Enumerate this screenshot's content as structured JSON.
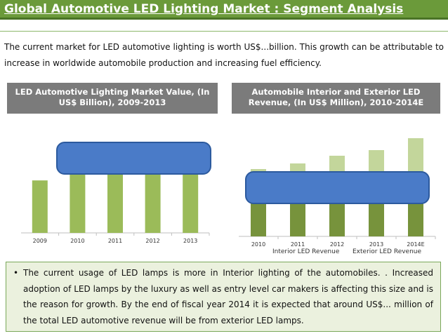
{
  "header": {
    "title": "Global Automotive LED Lighting Market : Segment Analysis"
  },
  "intro_text": "The current market for LED automotive lighting is worth US$...billion. This growth can be attributable to increase in worldwide automobile production and increasing fuel efficiency.",
  "left_panel": {
    "heading": "LED Automotive Lighting Market Value, (In US$ Billion), 2009-2013"
  },
  "right_panel": {
    "heading": "Automobile Interior and Exterior LED Revenue, (In US$ Million), 2010-2014E"
  },
  "bullet": {
    "marker": "•",
    "text": "The current usage of LED lamps is more in Interior lighting of the automobiles. . Increased adoption of LED lamps by the luxury as well as entry level car makers is affecting this size and is the reason for growth. By the end of fiscal year 2014 it is expected that around US$... million of the total LED automotive revenue will be from exterior LED lamps."
  },
  "colors": {
    "title_bar": "#6b9a3a",
    "bar_green": "#9bbb59",
    "interior_dark": "#77933c",
    "exterior_light": "#c3d69b",
    "overlay_blue": "#4a7bc8",
    "panel_gray": "#7b7b7b",
    "bullet_bg": "#ebf1de"
  },
  "chart_data": [
    {
      "type": "bar",
      "categories": [
        "2009",
        "2010",
        "2011",
        "2012",
        "2013"
      ],
      "values": [
        0.68,
        0.8,
        0.85,
        0.9,
        0.95
      ],
      "ylim": [
        0,
        1
      ],
      "grid": false,
      "obscured_by_overlay": true
    },
    {
      "type": "bar",
      "stacked": true,
      "categories": [
        "2010",
        "2011",
        "2012",
        "2013",
        "2014E"
      ],
      "series": [
        {
          "name": "Interior LED Revenue",
          "values": [
            60,
            62,
            65,
            67,
            70
          ]
        },
        {
          "name": "Exterior LED Revenue",
          "values": [
            36,
            42,
            50,
            56,
            70
          ]
        }
      ],
      "ylim": [
        0,
        145
      ],
      "legend_position": "bottom",
      "grid": false,
      "obscured_by_overlay": true
    }
  ]
}
